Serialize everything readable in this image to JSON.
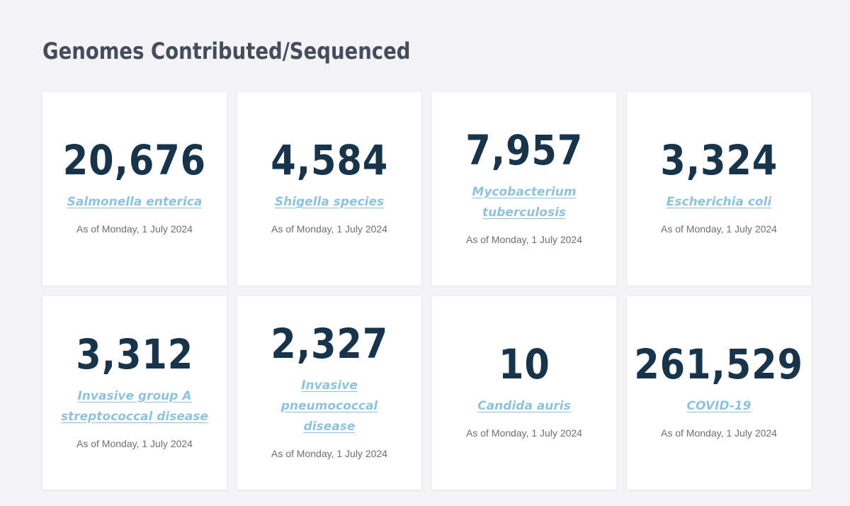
{
  "header": {
    "title": "Genomes Contributed/Sequenced"
  },
  "cards": [
    {
      "count": "20,676",
      "organism": "Salmonella enterica",
      "as_of": "As of Monday, 1 July 2024"
    },
    {
      "count": "4,584",
      "organism": "Shigella species",
      "as_of": "As of Monday, 1 July 2024"
    },
    {
      "count": "7,957",
      "organism": "Mycobacterium tuberculosis",
      "as_of": "As of Monday, 1 July 2024"
    },
    {
      "count": "3,324",
      "organism": "Escherichia coli",
      "as_of": "As of Monday, 1 July 2024"
    },
    {
      "count": "3,312",
      "organism": "Invasive group A streptococcal disease",
      "as_of": "As of Monday, 1 July 2024"
    },
    {
      "count": "2,327",
      "organism": "Invasive pneumococcal disease",
      "as_of": "As of Monday, 1 July 2024"
    },
    {
      "count": "10",
      "organism": "Candida auris",
      "as_of": "As of Monday, 1 July 2024"
    },
    {
      "count": "261,529",
      "organism": "COVID-19",
      "as_of": "As of Monday, 1 July 2024"
    }
  ],
  "colors": {
    "background": "#f4f4f6",
    "title": "#454c5c",
    "count": "#17344a",
    "link": "#8fc3dc",
    "caption": "#6b6f75"
  }
}
